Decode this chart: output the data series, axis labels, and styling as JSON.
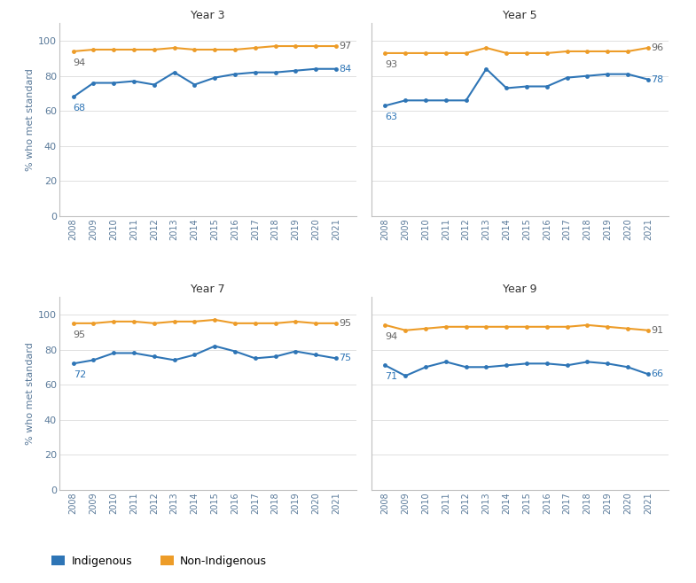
{
  "years": [
    2008,
    2009,
    2010,
    2011,
    2012,
    2013,
    2014,
    2015,
    2016,
    2017,
    2018,
    2019,
    2020,
    2021
  ],
  "subplots": [
    {
      "title": "Year 3",
      "indigenous": [
        68,
        76,
        76,
        77,
        75,
        82,
        75,
        79,
        81,
        82,
        82,
        83,
        84,
        84
      ],
      "non_indigenous": [
        94,
        95,
        95,
        95,
        95,
        96,
        95,
        95,
        95,
        96,
        97,
        97,
        97,
        97
      ],
      "label_start_ind": "68",
      "label_end_ind": "84",
      "label_start_nonind": "94",
      "label_end_nonind": "97"
    },
    {
      "title": "Year 5",
      "indigenous": [
        63,
        66,
        66,
        66,
        66,
        84,
        73,
        74,
        74,
        79,
        80,
        81,
        81,
        78
      ],
      "non_indigenous": [
        93,
        93,
        93,
        93,
        93,
        96,
        93,
        93,
        93,
        94,
        94,
        94,
        94,
        96
      ],
      "label_start_ind": "63",
      "label_end_ind": "78",
      "label_start_nonind": "93",
      "label_end_nonind": "96"
    },
    {
      "title": "Year 7",
      "indigenous": [
        72,
        74,
        78,
        78,
        76,
        74,
        77,
        82,
        79,
        75,
        76,
        79,
        77,
        75
      ],
      "non_indigenous": [
        95,
        95,
        96,
        96,
        95,
        96,
        96,
        97,
        95,
        95,
        95,
        96,
        95,
        95
      ],
      "label_start_ind": "72",
      "label_end_ind": "75",
      "label_start_nonind": "95",
      "label_end_nonind": "95"
    },
    {
      "title": "Year 9",
      "indigenous": [
        71,
        65,
        70,
        73,
        70,
        70,
        71,
        72,
        72,
        71,
        73,
        72,
        70,
        66
      ],
      "non_indigenous": [
        94,
        91,
        92,
        93,
        93,
        93,
        93,
        93,
        93,
        93,
        94,
        93,
        92,
        91
      ],
      "label_start_ind": "71",
      "label_end_ind": "66",
      "label_start_nonind": "94",
      "label_end_nonind": "91"
    }
  ],
  "indigenous_color": "#2E75B6",
  "non_indigenous_color": "#ED9C28",
  "ylabel": "% who met standard",
  "ylim": [
    0,
    110
  ],
  "yticks": [
    0,
    20,
    40,
    60,
    80,
    100
  ],
  "background_color": "#ffffff",
  "legend_indigenous": "Indigenous",
  "legend_non_indigenous": "Non-Indigenous",
  "grid_color": "#e0e0e0",
  "spine_color": "#c0c0c0",
  "tick_color": "#5a7a9a",
  "title_color": "#333333",
  "annotation_color_nonind": "#666666"
}
